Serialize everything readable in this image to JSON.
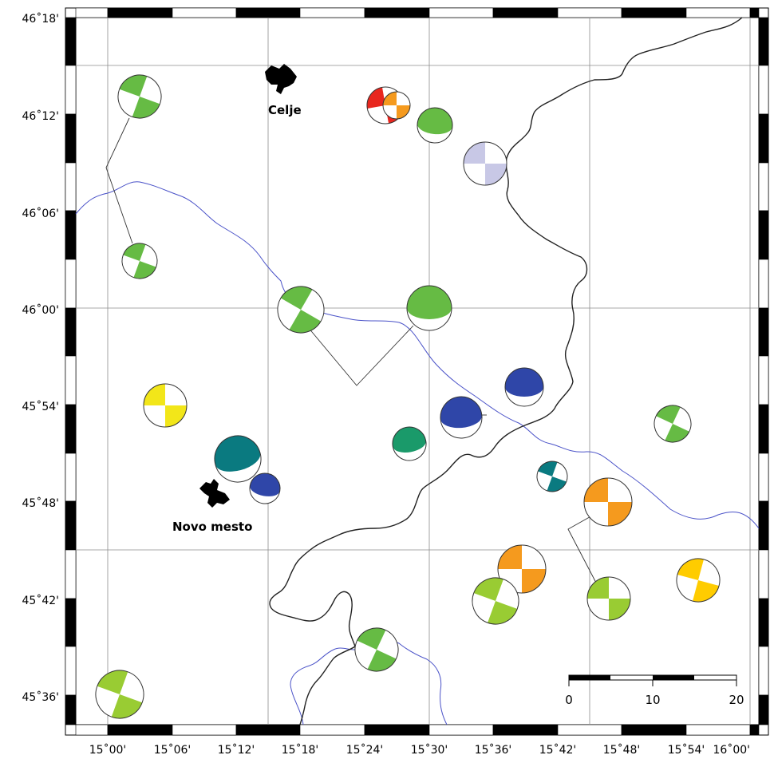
{
  "map": {
    "lat_labels": [
      "46˚18'",
      "46˚12'",
      "46˚06'",
      "46˚00'",
      "45˚54'",
      "45˚48'",
      "45˚42'",
      "45˚36'"
    ],
    "lon_labels": [
      "15˚00'",
      "15˚06'",
      "15˚12'",
      "15˚18'",
      "15˚24'",
      "15˚30'",
      "15˚36'",
      "15˚42'",
      "15˚48'",
      "15˚54'",
      "16˚00'"
    ],
    "towns": [
      {
        "name": "Celje"
      },
      {
        "name": "Novo mesto"
      }
    ],
    "scale": {
      "labels": [
        "0",
        "10",
        "20"
      ]
    },
    "colors": {
      "river": "#4a52c8",
      "border": "#222222",
      "grid": "#8c8c8c",
      "green": "#66bb44",
      "lightgreen": "#99cc33",
      "yellow": "#f2e619",
      "gold": "#ffcc00",
      "orange": "#f59a1e",
      "red": "#e8261e",
      "lavender": "#c8c8e6",
      "blue": "#2f46a8",
      "teal": "#0a7a80",
      "seagreen": "#1a9a6a"
    },
    "mechanisms": [
      {
        "color": "green",
        "style": "cross"
      },
      {
        "color": "green",
        "style": "cross"
      },
      {
        "color": "red",
        "style": "cross"
      },
      {
        "color": "orange",
        "style": "cross"
      },
      {
        "color": "green",
        "style": "lens"
      },
      {
        "color": "lavender",
        "style": "cross"
      },
      {
        "color": "green",
        "style": "cross"
      },
      {
        "color": "green",
        "style": "lens"
      },
      {
        "color": "blue",
        "style": "lens"
      },
      {
        "color": "blue",
        "style": "lens"
      },
      {
        "color": "yellow",
        "style": "cross"
      },
      {
        "color": "seagreen",
        "style": "lens"
      },
      {
        "color": "teal",
        "style": "lens"
      },
      {
        "color": "blue",
        "style": "lens"
      },
      {
        "color": "teal",
        "style": "cross"
      },
      {
        "color": "green",
        "style": "cross"
      },
      {
        "color": "orange",
        "style": "cross"
      },
      {
        "color": "orange",
        "style": "cross"
      },
      {
        "color": "lightgreen",
        "style": "cross"
      },
      {
        "color": "lightgreen",
        "style": "cross"
      },
      {
        "color": "gold",
        "style": "cross"
      },
      {
        "color": "green",
        "style": "cross"
      },
      {
        "color": "lightgreen",
        "style": "cross"
      }
    ]
  }
}
